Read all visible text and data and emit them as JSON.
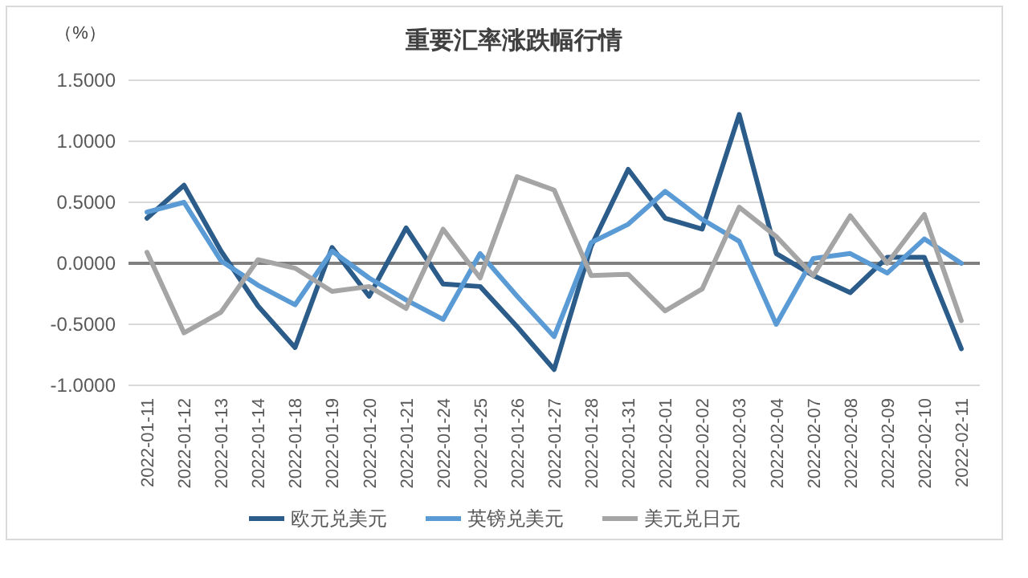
{
  "chart_data": {
    "type": "line",
    "title": "重要汇率涨跌幅行情",
    "ylabel": "（%）",
    "categories": [
      "2022-01-11",
      "2022-01-12",
      "2022-01-13",
      "2022-01-14",
      "2022-01-18",
      "2022-01-19",
      "2022-01-20",
      "2022-01-21",
      "2022-01-24",
      "2022-01-25",
      "2022-01-26",
      "2022-01-27",
      "2022-01-28",
      "2022-01-31",
      "2022-02-01",
      "2022-02-02",
      "2022-02-03",
      "2022-02-04",
      "2022-02-07",
      "2022-02-08",
      "2022-02-09",
      "2022-02-10",
      "2022-02-11"
    ],
    "series": [
      {
        "name": "欧元兑美元",
        "color": "#2b5c8a",
        "values": [
          0.37,
          0.64,
          0.1,
          -0.35,
          -0.69,
          0.13,
          -0.27,
          0.29,
          -0.17,
          -0.19,
          -0.52,
          -0.87,
          0.14,
          0.77,
          0.37,
          0.28,
          1.22,
          0.08,
          -0.1,
          -0.24,
          0.05,
          0.05,
          -0.7
        ]
      },
      {
        "name": "英镑兑美元",
        "color": "#5b9bd5",
        "values": [
          0.42,
          0.5,
          0.02,
          -0.18,
          -0.34,
          0.1,
          -0.12,
          -0.3,
          -0.46,
          0.08,
          -0.27,
          -0.6,
          0.17,
          0.32,
          0.59,
          0.36,
          0.18,
          -0.5,
          0.04,
          0.08,
          -0.08,
          0.2,
          0.0
        ]
      },
      {
        "name": "美元兑日元",
        "color": "#a5a5a5",
        "values": [
          0.09,
          -0.57,
          -0.4,
          0.03,
          -0.04,
          -0.23,
          -0.19,
          -0.37,
          0.28,
          -0.12,
          0.71,
          0.6,
          -0.1,
          -0.09,
          -0.39,
          -0.21,
          0.46,
          0.22,
          -0.1,
          0.39,
          0.0,
          0.4,
          -0.47
        ]
      }
    ],
    "ylim": [
      -1,
      1.5
    ],
    "yticks": [
      {
        "value": -1,
        "label": "-1.0000"
      },
      {
        "value": -0.5,
        "label": "-0.5000"
      },
      {
        "value": 0,
        "label": "0.0000"
      },
      {
        "value": 0.5,
        "label": "0.5000"
      },
      {
        "value": 1,
        "label": "1.0000"
      },
      {
        "value": 1.5,
        "label": "1.5000"
      }
    ],
    "grid": "y",
    "legend": "bottom",
    "marker": "none",
    "line_style": "solid"
  }
}
